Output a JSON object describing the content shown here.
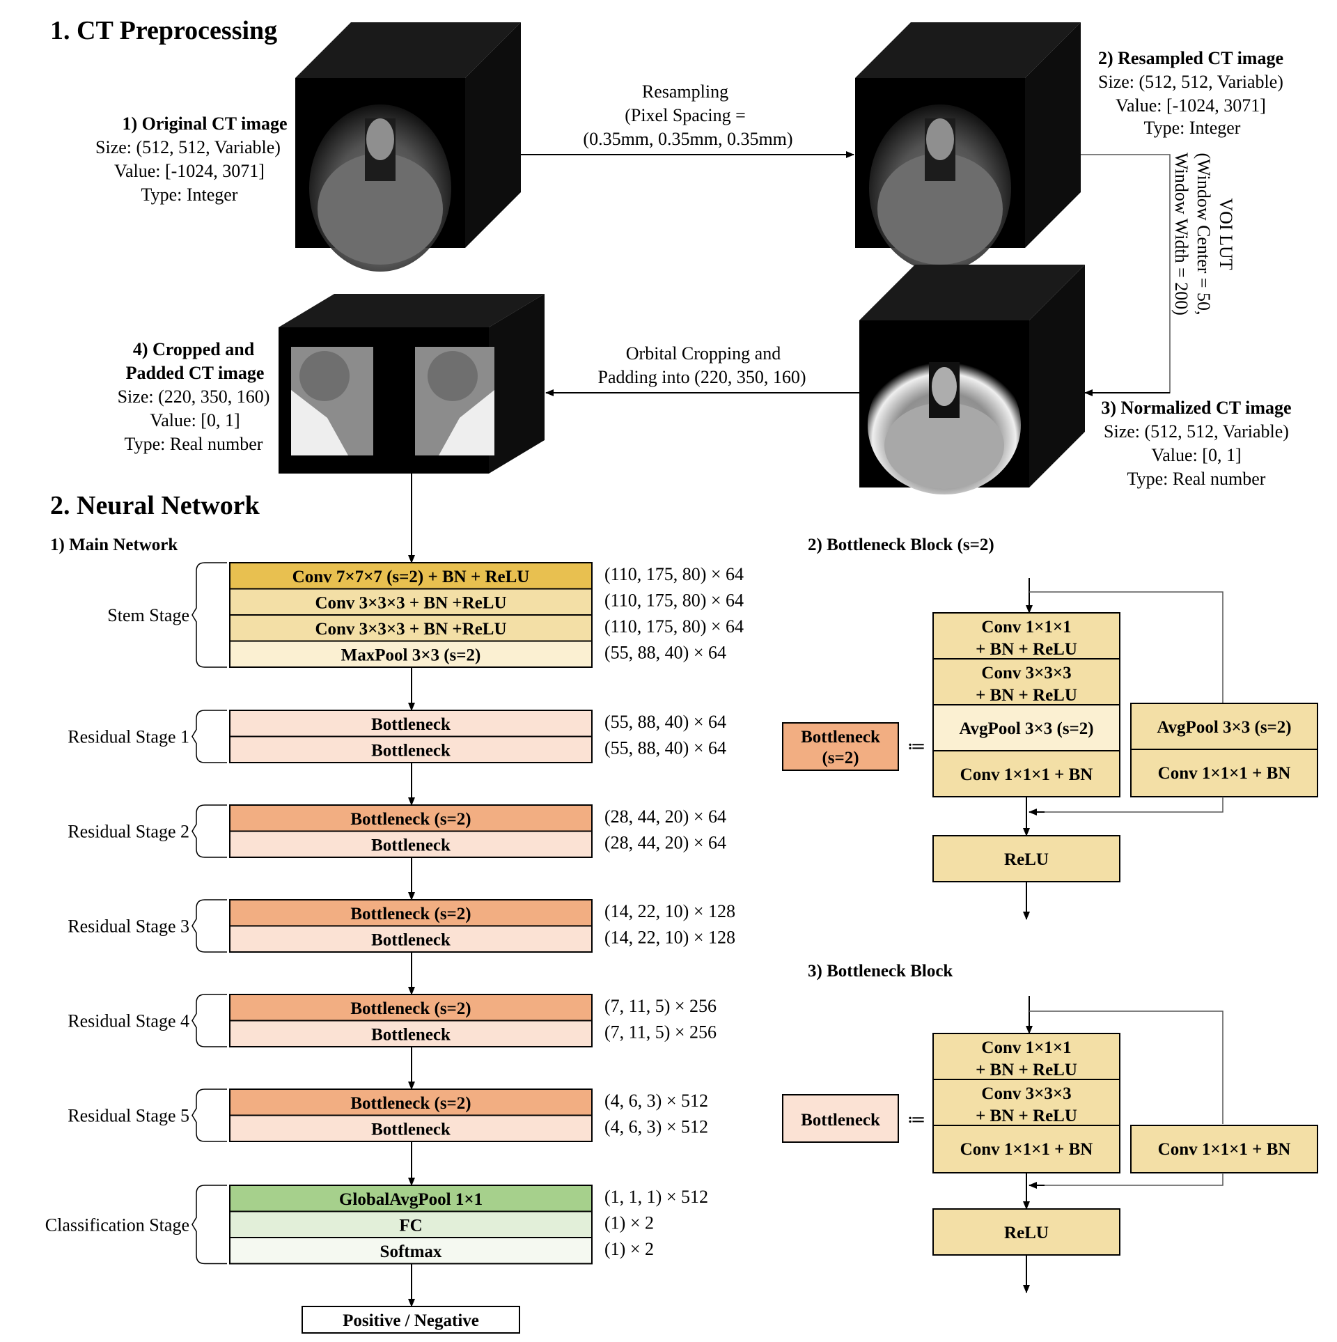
{
  "section1": {
    "title": "1. CT Preprocessing",
    "img1": {
      "title": "1) Original CT image",
      "size": "Size: (512, 512, Variable)",
      "value": "Value: [-1024, 3071]",
      "type": "Type: Integer"
    },
    "img2": {
      "title": "2) Resampled CT image",
      "size": "Size: (512, 512, Variable)",
      "value": "Value: [-1024, 3071]",
      "type": "Type: Integer"
    },
    "img3": {
      "title": "3) Normalized CT image",
      "size": "Size: (512, 512, Variable)",
      "value": "Value: [0, 1]",
      "type": "Type: Real number"
    },
    "img4": {
      "title_line1": "4) Cropped and",
      "title_line2": "Padded CT image",
      "size": "Size: (220, 350, 160)",
      "value": "Value: [0, 1]",
      "type": "Type: Real number"
    },
    "step_resampling": {
      "line1": "Resampling",
      "line2": "(Pixel Spacing =",
      "line3": "(0.35mm, 0.35mm, 0.35mm)"
    },
    "step_voilut": {
      "line1": "VOI LUT",
      "line2": "(Window Center = 50,",
      "line3": "Window Width = 200)"
    },
    "step_crop": {
      "line1": "Orbital Cropping and",
      "line2": "Padding into (220, 350, 160)"
    }
  },
  "section2": {
    "title": "2. Neural Network",
    "main_title": "1) Main Network",
    "stages": [
      {
        "label": "Stem Stage",
        "layers": [
          {
            "name": "Conv 7×7×7 (s=2) + BN + ReLU",
            "dim": "(110, 175, 80) × 64",
            "color": "#E8C050"
          },
          {
            "name": "Conv 3×3×3 + BN +ReLU",
            "dim": "(110, 175, 80) × 64",
            "color": "#F3DFA6"
          },
          {
            "name": "Conv 3×3×3 + BN +ReLU",
            "dim": "(110, 175, 80) × 64",
            "color": "#F3DFA6"
          },
          {
            "name": "MaxPool 3×3 (s=2)",
            "dim": "(55, 88, 40) × 64",
            "color": "#FBF0D2"
          }
        ]
      },
      {
        "label": "Residual Stage 1",
        "layers": [
          {
            "name": "Bottleneck",
            "dim": "(55, 88, 40) × 64",
            "color": "#FBE2D4"
          },
          {
            "name": "Bottleneck",
            "dim": "(55, 88, 40) × 64",
            "color": "#FBE2D4"
          }
        ]
      },
      {
        "label": "Residual Stage 2",
        "layers": [
          {
            "name": "Bottleneck (s=2)",
            "dim": "(28, 44, 20) × 64",
            "color": "#F2AE82"
          },
          {
            "name": "Bottleneck",
            "dim": "(28, 44, 20) × 64",
            "color": "#FBE2D4"
          }
        ]
      },
      {
        "label": "Residual Stage 3",
        "layers": [
          {
            "name": "Bottleneck (s=2)",
            "dim": "(14, 22, 10) × 128",
            "color": "#F2AE82"
          },
          {
            "name": "Bottleneck",
            "dim": "(14, 22, 10) × 128",
            "color": "#FBE2D4"
          }
        ]
      },
      {
        "label": "Residual Stage 4",
        "layers": [
          {
            "name": "Bottleneck (s=2)",
            "dim": "(7, 11, 5) × 256",
            "color": "#F2AE82"
          },
          {
            "name": "Bottleneck",
            "dim": "(7, 11, 5) × 256",
            "color": "#FBE2D4"
          }
        ]
      },
      {
        "label": "Residual Stage 5",
        "layers": [
          {
            "name": "Bottleneck (s=2)",
            "dim": "(4, 6, 3) × 512",
            "color": "#F2AE82"
          },
          {
            "name": "Bottleneck",
            "dim": "(4, 6, 3) × 512",
            "color": "#FBE2D4"
          }
        ]
      },
      {
        "label": "Classification Stage",
        "layers": [
          {
            "name": "GlobalAvgPool 1×1",
            "dim": "(1, 1, 1) × 512",
            "color": "#A6D08C"
          },
          {
            "name": "FC",
            "dim": "(1) × 2",
            "color": "#E2EFD9"
          },
          {
            "name": "Softmax",
            "dim": "(1) × 2",
            "color": "#F5F9F1"
          }
        ]
      }
    ],
    "output": "Positive / Negative",
    "block_s2": {
      "title": "2) Bottleneck Block (s=2)",
      "key": "Bottleneck\n(s=2)",
      "key_line1": "Bottleneck",
      "key_line2": "(s=2)",
      "defsym": "≔",
      "conv1_l1": "Conv 1×1×1",
      "conv1_l2": "+ BN + ReLU",
      "conv3_l1": "Conv 3×3×3",
      "conv3_l2": "+ BN + ReLU",
      "avgpool": "AvgPool 3×3 (s=2)",
      "conv1bn": "Conv 1×1×1 + BN",
      "short_avgpool": "AvgPool 3×3 (s=2)",
      "short_conv": "Conv 1×1×1 + BN",
      "relu": "ReLU"
    },
    "block": {
      "title": "3) Bottleneck Block",
      "key": "Bottleneck",
      "defsym": "≔",
      "conv1_l1": "Conv 1×1×1",
      "conv1_l2": "+ BN + ReLU",
      "conv3_l1": "Conv 3×3×3",
      "conv3_l2": "+ BN + ReLU",
      "conv1bn": "Conv 1×1×1 + BN",
      "short_conv": "Conv 1×1×1 + BN",
      "relu": "ReLU"
    }
  },
  "colors": {
    "yellow_dark": "#E8C050",
    "yellow": "#F3DFA6",
    "yellow_light": "#FBF0D2",
    "peach": "#F2AE82",
    "peach_light": "#FBE2D4",
    "green": "#A6D08C",
    "green_light": "#E2EFD9",
    "green_lighter": "#F5F9F1"
  }
}
